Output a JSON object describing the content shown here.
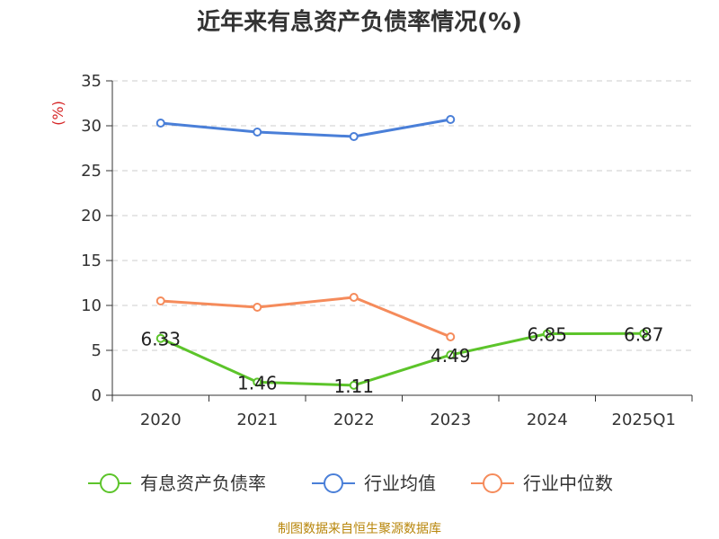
{
  "page": {
    "title": "近年来有息资产负债率情况(%)",
    "source": "制图数据来自恒生聚源数据库"
  },
  "colors": {
    "green": "#5cc42a",
    "blue": "#4a7fd8",
    "orange": "#f58b5b",
    "unit": "#d62728",
    "grid": "#cccccc",
    "axis": "#333333"
  },
  "chart_data": {
    "type": "line",
    "title": "近年来有息资产负债率情况(%)",
    "ylabel": "(%)",
    "xlabel": "",
    "categories": [
      "2020",
      "2021",
      "2022",
      "2023",
      "2024",
      "2025Q1"
    ],
    "ylim": [
      0,
      35
    ],
    "yticks": [
      0,
      5,
      10,
      15,
      20,
      25,
      30,
      35
    ],
    "grid": true,
    "legend": "bottom",
    "series": [
      {
        "name": "有息资产负债率",
        "color": "#5cc42a",
        "values": [
          6.33,
          1.46,
          1.11,
          4.49,
          6.85,
          6.87
        ],
        "labels": [
          "6.33",
          "1.46",
          "1.11",
          "4.49",
          "6.85",
          "6.87"
        ]
      },
      {
        "name": "行业均值",
        "color": "#4a7fd8",
        "values": [
          30.3,
          29.3,
          28.8,
          30.7,
          null,
          null
        ]
      },
      {
        "name": "行业中位数",
        "color": "#f58b5b",
        "values": [
          10.5,
          9.8,
          10.9,
          6.5,
          null,
          null
        ]
      }
    ]
  }
}
